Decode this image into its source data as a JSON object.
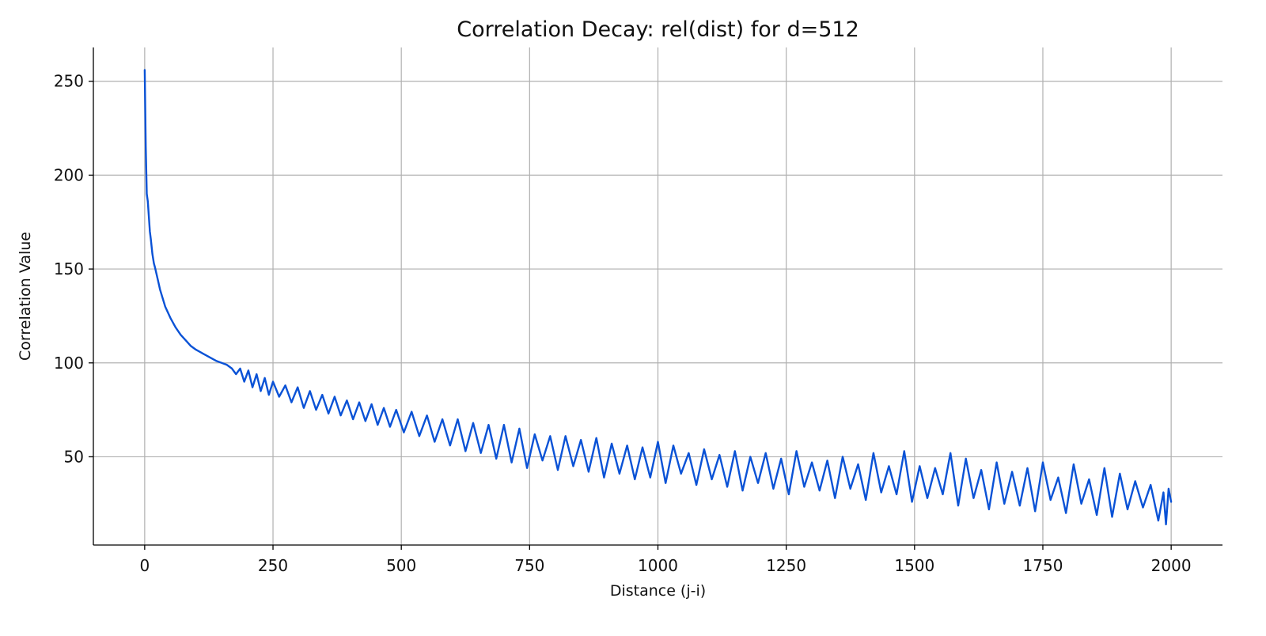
{
  "chart_data": {
    "type": "line",
    "title": "Correlation Decay: rel(dist) for d=512",
    "xlabel": "Distance (j-i)",
    "ylabel": "Correlation Value",
    "xlim": [
      -100,
      2100
    ],
    "ylim": [
      3,
      268
    ],
    "xticks": [
      0,
      250,
      500,
      750,
      1000,
      1250,
      1500,
      1750,
      2000
    ],
    "xtick_labels": [
      "0",
      "250",
      "500",
      "750",
      "1000",
      "1250",
      "1500",
      "1750",
      "2000"
    ],
    "yticks": [
      50,
      100,
      150,
      200,
      250
    ],
    "ytick_labels": [
      "50",
      "100",
      "150",
      "200",
      "250"
    ],
    "grid": true,
    "legend": "none",
    "line_color": "#0a52d6",
    "series": [
      {
        "x": [
          0,
          2,
          4,
          6,
          8,
          10,
          12,
          15,
          18,
          20,
          25,
          30,
          40,
          50,
          60,
          70,
          80,
          90,
          100,
          120,
          140,
          160,
          170,
          178,
          186,
          194,
          202,
          210,
          218,
          226,
          234,
          242,
          250,
          262,
          274,
          286,
          298,
          310,
          322,
          334,
          346,
          358,
          370,
          382,
          394,
          406,
          418,
          430,
          442,
          454,
          466,
          478,
          490,
          505,
          520,
          535,
          550,
          565,
          580,
          595,
          610,
          625,
          640,
          655,
          670,
          685,
          700,
          715,
          730,
          745,
          760,
          775,
          790,
          805,
          820,
          835,
          850,
          865,
          880,
          895,
          910,
          925,
          940,
          955,
          970,
          985,
          1000,
          1015,
          1030,
          1045,
          1060,
          1075,
          1090,
          1105,
          1120,
          1135,
          1150,
          1165,
          1180,
          1195,
          1210,
          1225,
          1240,
          1255,
          1270,
          1285,
          1300,
          1315,
          1330,
          1345,
          1360,
          1375,
          1390,
          1405,
          1420,
          1435,
          1450,
          1465,
          1480,
          1495,
          1510,
          1525,
          1540,
          1555,
          1570,
          1585,
          1600,
          1615,
          1630,
          1645,
          1660,
          1675,
          1690,
          1705,
          1720,
          1735,
          1750,
          1765,
          1780,
          1795,
          1810,
          1825,
          1840,
          1855,
          1870,
          1885,
          1900,
          1915,
          1930,
          1945,
          1960,
          1975,
          1985,
          1990,
          1995,
          2000
        ],
        "y": [
          256,
          215,
          190,
          186,
          178,
          170,
          166,
          158,
          153,
          151,
          145,
          139,
          130,
          124,
          119,
          115,
          112,
          109,
          107,
          104,
          101,
          99,
          97,
          94,
          97,
          90,
          96,
          87,
          94,
          85,
          92,
          83,
          90,
          82,
          88,
          79,
          87,
          76,
          85,
          75,
          83,
          73,
          82,
          72,
          80,
          70,
          79,
          69,
          78,
          67,
          76,
          66,
          75,
          63,
          74,
          61,
          72,
          58,
          70,
          56,
          70,
          53,
          68,
          52,
          67,
          49,
          67,
          47,
          65,
          44,
          62,
          48,
          61,
          43,
          61,
          45,
          59,
          42,
          60,
          39,
          57,
          41,
          56,
          38,
          55,
          39,
          58,
          36,
          56,
          41,
          52,
          35,
          54,
          38,
          51,
          34,
          53,
          32,
          50,
          36,
          52,
          33,
          49,
          30,
          53,
          34,
          47,
          32,
          48,
          28,
          50,
          33,
          46,
          27,
          52,
          31,
          45,
          30,
          53,
          26,
          45,
          28,
          44,
          30,
          52,
          24,
          49,
          28,
          43,
          22,
          47,
          25,
          42,
          24,
          44,
          21,
          47,
          27,
          39,
          20,
          46,
          25,
          38,
          19,
          44,
          18,
          41,
          22,
          37,
          23,
          35,
          16,
          31,
          14,
          33,
          26
        ]
      }
    ]
  }
}
